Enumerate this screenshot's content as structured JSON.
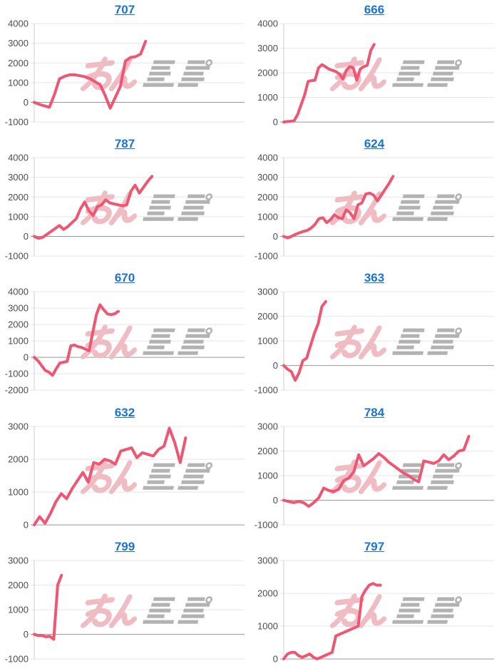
{
  "page": {
    "background": "#ffffff"
  },
  "style": {
    "line_color": "#ee5672",
    "title_color": "#1a73d1",
    "tick_label_color": "#4d4d4d",
    "gridline_color": "#e5e5e5",
    "zero_line_color": "#969696",
    "axis_color": "#cccccc",
    "watermark_pink": "#f0bcc3",
    "watermark_gray": "#b2b2b2"
  },
  "watermark": {
    "text": "みんレポ",
    "pink_part": "みん",
    "gray_part": "レポ"
  },
  "chart_data": [
    {
      "type": "line",
      "title": "707",
      "ylim": [
        -1000,
        4000
      ],
      "yticks": [
        4000,
        3000,
        2000,
        1000,
        0,
        -1000
      ],
      "x_extent": 0.53,
      "grid": true,
      "legend": "none",
      "values": [
        0,
        -100,
        -180,
        -250,
        400,
        1200,
        1320,
        1400,
        1400,
        1350,
        1300,
        1200,
        1050,
        900,
        350,
        -300,
        250,
        800,
        2100,
        2280,
        2320,
        2450,
        3100
      ]
    },
    {
      "type": "line",
      "title": "666",
      "ylim": [
        0,
        4000
      ],
      "yticks": [
        4000,
        3000,
        2000,
        1000,
        0
      ],
      "x_extent": 0.43,
      "grid": true,
      "legend": "none",
      "values": [
        0,
        20,
        30,
        50,
        300,
        700,
        1100,
        1650,
        1680,
        1700,
        2200,
        2330,
        2250,
        2150,
        2100,
        2050,
        1950,
        1750,
        2100,
        2250,
        2200,
        1700,
        2150,
        2250,
        2300,
        2900,
        3150
      ]
    },
    {
      "type": "line",
      "title": "787",
      "ylim": [
        -1000,
        4000
      ],
      "yticks": [
        4000,
        3000,
        2000,
        1000,
        0,
        -1000
      ],
      "x_extent": 0.56,
      "grid": true,
      "legend": "none",
      "values": [
        0,
        -100,
        -50,
        100,
        250,
        400,
        550,
        350,
        500,
        700,
        900,
        1400,
        1750,
        1300,
        1050,
        1500,
        1600,
        1850,
        1700,
        1650,
        1600,
        1550,
        1600,
        2300,
        2600,
        2200,
        2500,
        2800,
        3050
      ]
    },
    {
      "type": "line",
      "title": "624",
      "ylim": [
        -1000,
        4000
      ],
      "yticks": [
        4000,
        3000,
        2000,
        1000,
        0,
        -1000
      ],
      "x_extent": 0.52,
      "grid": true,
      "legend": "none",
      "values": [
        0,
        -80,
        0,
        100,
        180,
        250,
        300,
        420,
        600,
        900,
        950,
        700,
        850,
        1100,
        950,
        900,
        1350,
        1200,
        900,
        1600,
        1700,
        2150,
        2200,
        2100,
        1800,
        2100,
        2400,
        2700,
        3050
      ]
    },
    {
      "type": "line",
      "title": "670",
      "ylim": [
        -2000,
        4000
      ],
      "yticks": [
        4000,
        3000,
        2000,
        1000,
        0,
        -1000,
        -2000
      ],
      "x_extent": 0.4,
      "grid": true,
      "legend": "none",
      "values": [
        0,
        -200,
        -500,
        -800,
        -900,
        -1100,
        -700,
        -350,
        -300,
        -250,
        700,
        750,
        650,
        600,
        500,
        400,
        1500,
        2600,
        3200,
        2900,
        2650,
        2600,
        2650,
        2800
      ]
    },
    {
      "type": "line",
      "title": "363",
      "ylim": [
        -1000,
        3000
      ],
      "yticks": [
        3000,
        2000,
        1000,
        0,
        -1000
      ],
      "x_extent": 0.2,
      "grid": true,
      "legend": "none",
      "values": [
        0,
        -150,
        -250,
        -600,
        -300,
        200,
        300,
        800,
        1300,
        1700,
        2400,
        2600
      ]
    },
    {
      "type": "line",
      "title": "632",
      "ylim": [
        0,
        3000
      ],
      "yticks": [
        3000,
        2000,
        1000,
        0
      ],
      "x_extent": 0.72,
      "grid": true,
      "legend": "none",
      "values": [
        0,
        250,
        50,
        350,
        700,
        950,
        800,
        1100,
        1350,
        1600,
        1300,
        1900,
        1850,
        2000,
        1950,
        1850,
        2250,
        2300,
        2350,
        2050,
        2200,
        2150,
        2100,
        2300,
        2400,
        2950,
        2500,
        1900,
        2650
      ]
    },
    {
      "type": "line",
      "title": "784",
      "ylim": [
        -1000,
        3000
      ],
      "yticks": [
        3000,
        2000,
        1000,
        0,
        -1000
      ],
      "x_extent": 0.88,
      "grid": true,
      "legend": "none",
      "values": [
        0,
        -50,
        -100,
        -50,
        -100,
        -250,
        -100,
        100,
        500,
        400,
        350,
        450,
        800,
        900,
        1150,
        1850,
        1400,
        1550,
        1700,
        1900,
        1750,
        1550,
        1400,
        1250,
        1100,
        1000,
        850,
        750,
        1600,
        1550,
        1500,
        1600,
        1850,
        1650,
        1800,
        2000,
        2050,
        2600
      ]
    },
    {
      "type": "line",
      "title": "799",
      "ylim": [
        -1000,
        3000
      ],
      "yticks": [
        3000,
        2000,
        1000,
        0,
        -1000
      ],
      "x_extent": 0.13,
      "grid": true,
      "legend": "none",
      "values": [
        0,
        -50,
        -50,
        -100,
        -80,
        -200,
        2000,
        2400
      ]
    },
    {
      "type": "line",
      "title": "797",
      "ylim": [
        0,
        3000
      ],
      "yticks": [
        3000,
        2000,
        1000,
        0
      ],
      "x_extent": 0.46,
      "grid": true,
      "legend": "none",
      "values": [
        0,
        150,
        200,
        200,
        100,
        50,
        100,
        150,
        50,
        0,
        50,
        100,
        150,
        200,
        700,
        750,
        800,
        850,
        900,
        950,
        1000,
        1900,
        2100,
        2250,
        2300,
        2250,
        2250
      ]
    }
  ]
}
